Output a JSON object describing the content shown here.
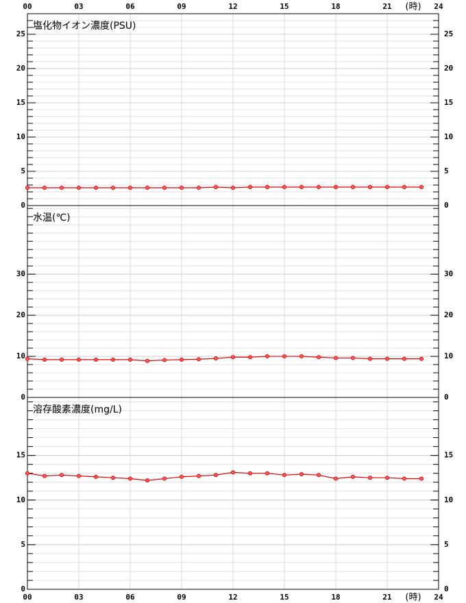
{
  "chart_data": [
    {
      "type": "line",
      "title": "塩化物イオン濃度(PSU)",
      "xlim": [
        0,
        24
      ],
      "x_unit_label": "(時)",
      "xtick_labels": "top",
      "xticks": [
        {
          "value": 0,
          "label": "00"
        },
        {
          "value": 3,
          "label": "03"
        },
        {
          "value": 6,
          "label": "06"
        },
        {
          "value": 9,
          "label": "09"
        },
        12,
        15,
        18,
        21,
        24
      ],
      "ylim": [
        0,
        28
      ],
      "yticks": [
        0,
        5,
        10,
        15,
        20,
        25
      ],
      "minor_step": 1,
      "x": [
        0,
        1,
        2,
        3,
        4,
        5,
        6,
        7,
        8,
        9,
        10,
        11,
        12,
        13,
        14,
        15,
        16,
        17,
        18,
        19,
        20,
        21,
        22,
        23
      ],
      "series": [
        {
          "color": "#e00000",
          "values": [
            2.6,
            2.6,
            2.6,
            2.6,
            2.6,
            2.6,
            2.6,
            2.6,
            2.6,
            2.6,
            2.6,
            2.7,
            2.6,
            2.7,
            2.7,
            2.7,
            2.7,
            2.7,
            2.7,
            2.7,
            2.7,
            2.7,
            2.7,
            2.7
          ]
        }
      ]
    },
    {
      "type": "line",
      "title": "水温(℃)",
      "xlim": [
        0,
        24
      ],
      "xtick_labels": "none",
      "xticks": [
        0,
        3,
        6,
        9,
        12,
        15,
        18,
        21,
        24
      ],
      "ylim": [
        0,
        46.7
      ],
      "yticks": [
        0,
        10,
        20,
        30
      ],
      "minor_step": 2,
      "x": [
        0,
        1,
        2,
        3,
        4,
        5,
        6,
        7,
        8,
        9,
        10,
        11,
        12,
        13,
        14,
        15,
        16,
        17,
        18,
        19,
        20,
        21,
        22,
        23
      ],
      "series": [
        {
          "color": "#e00000",
          "values": [
            9.4,
            9.2,
            9.2,
            9.2,
            9.2,
            9.2,
            9.2,
            8.9,
            9.1,
            9.2,
            9.3,
            9.5,
            9.8,
            9.8,
            10.0,
            10.0,
            10.0,
            9.8,
            9.6,
            9.6,
            9.4,
            9.4,
            9.4,
            9.4
          ]
        }
      ]
    },
    {
      "type": "line",
      "title": "溶存酸素濃度(mg/L)",
      "xlim": [
        0,
        24
      ],
      "x_unit_label": "(時)",
      "xtick_labels": "bottom",
      "xticks": [
        {
          "value": 0,
          "label": "00"
        },
        {
          "value": 3,
          "label": "03"
        },
        {
          "value": 6,
          "label": "06"
        },
        {
          "value": 9,
          "label": "09"
        },
        12,
        15,
        18,
        21,
        24
      ],
      "ylim": [
        0,
        21.5
      ],
      "yticks": [
        0,
        5,
        10,
        15
      ],
      "minor_step": 1,
      "x": [
        0,
        1,
        2,
        3,
        4,
        5,
        6,
        7,
        8,
        9,
        10,
        11,
        12,
        13,
        14,
        15,
        16,
        17,
        18,
        19,
        20,
        21,
        22,
        23
      ],
      "series": [
        {
          "color": "#e00000",
          "values": [
            13.0,
            12.7,
            12.8,
            12.7,
            12.6,
            12.5,
            12.4,
            12.2,
            12.4,
            12.6,
            12.7,
            12.8,
            13.1,
            13.0,
            13.0,
            12.8,
            12.9,
            12.8,
            12.4,
            12.6,
            12.5,
            12.5,
            12.4,
            12.4
          ]
        }
      ]
    }
  ]
}
